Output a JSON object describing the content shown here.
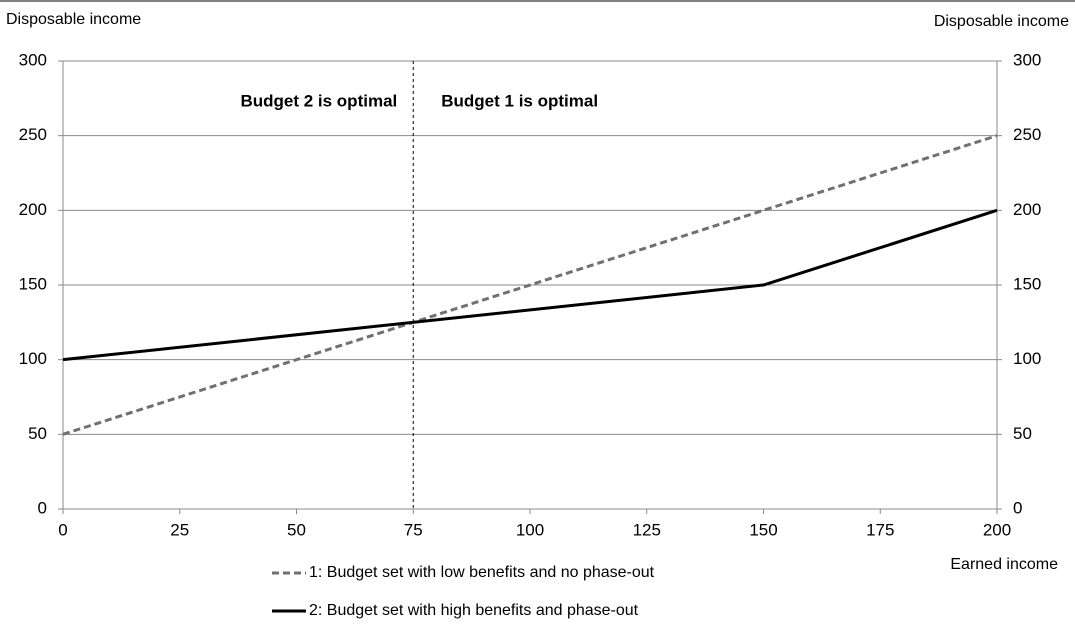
{
  "chart_data": {
    "type": "line",
    "y_label": "Disposable income",
    "y2_label": "Disposable income",
    "x_label": "Earned income",
    "xlim": [
      0,
      200
    ],
    "xticks": [
      0,
      25,
      50,
      75,
      100,
      125,
      150,
      175,
      200
    ],
    "ylim": [
      0,
      300
    ],
    "yticks": [
      0,
      50,
      100,
      150,
      200,
      250,
      300
    ],
    "y2lim": [
      0,
      300
    ],
    "y2ticks": [
      0,
      50,
      100,
      150,
      200,
      250,
      300
    ],
    "grid": true,
    "vline": 75,
    "annotations": [
      "Budget 2 is optimal",
      "Budget 1 is optimal"
    ],
    "legend": "bottom",
    "series": [
      {
        "name": "1: Budget set with low benefits and no phase-out",
        "color": "#707070",
        "dashed": true,
        "x": [
          0,
          200
        ],
        "values": [
          50,
          250
        ]
      },
      {
        "name": "2: Budget set with high benefits and phase-out",
        "color": "#000000",
        "dashed": false,
        "x": [
          0,
          150,
          200
        ],
        "values": [
          100,
          150,
          200
        ]
      }
    ]
  }
}
